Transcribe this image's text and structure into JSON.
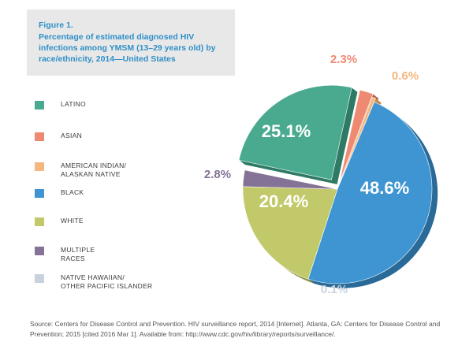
{
  "figure_label": "Figure 1.",
  "title": "Percentage of estimated diagnosed HIV infections among YMSM (13–29 years old) by race/ethnicity, 2014—United States",
  "source": "Source: Centers for Disease Control and Prevention. HIV surveillance report, 2014 [Internet]. Atlanta, GA: Centers for Disease Control and Prevention; 2015 [cited 2016 Mar 1]. Available from: http://www.cdc.gov/hiv/library/reports/surveillance/.",
  "chart_data": {
    "type": "pie",
    "title": "Percentage of estimated diagnosed HIV infections among YMSM (13–29 years old) by race/ethnicity, 2014—United States",
    "legend_position": "left",
    "slices": [
      {
        "name": "LATINO",
        "value": 25.1,
        "label": "25.1%",
        "color": "#4aaa8f",
        "side": "#2f7a64"
      },
      {
        "name": "ASIAN",
        "value": 2.3,
        "label": "2.3%",
        "color": "#ef8a72",
        "side": "#b2604d"
      },
      {
        "name": "AMERICAN INDIAN/\nALASKAN NATIVE",
        "value": 0.6,
        "label": "0.6%",
        "color": "#f6b77e",
        "side": "#c0884f"
      },
      {
        "name": "BLACK",
        "value": 48.6,
        "label": "48.6%",
        "color": "#3e95d2",
        "side": "#2a6a98"
      },
      {
        "name": "WHITE",
        "value": 20.4,
        "label": "20.4%",
        "color": "#c2c96a",
        "side": "#8d9444"
      },
      {
        "name": "MULTIPLE\nRACES",
        "value": 2.8,
        "label": "2.8%",
        "color": "#847396",
        "side": "#5b4d6b"
      },
      {
        "name": "NATIVE HAWAIIAN/\nOTHER PACIFIC ISLANDER",
        "value": 0.1,
        "label": "0.1%",
        "color": "#c7d2dc",
        "side": "#9aa6b0"
      }
    ]
  }
}
